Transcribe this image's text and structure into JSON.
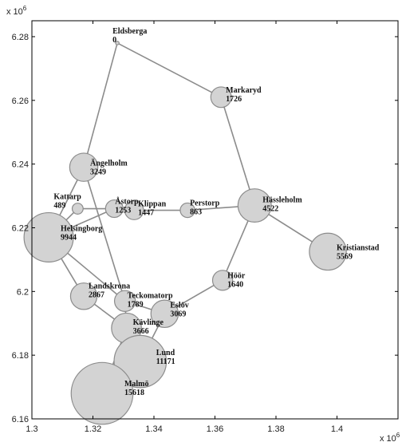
{
  "chart_data": {
    "type": "network",
    "x_exponent_label": "x 10",
    "x_exponent_power": "6",
    "y_exponent_label": "x 10",
    "y_exponent_power": "6",
    "xlim": [
      1.3,
      1.42
    ],
    "ylim": [
      6.16,
      6.285
    ],
    "xticks": [
      1.3,
      1.32,
      1.34,
      1.36,
      1.38,
      1.4
    ],
    "xtick_labels": [
      "1.3",
      "1.32",
      "1.34",
      "1.36",
      "1.38",
      "1.4"
    ],
    "yticks": [
      6.16,
      6.18,
      6.2,
      6.22,
      6.24,
      6.26,
      6.28
    ],
    "ytick_labels": [
      "6.16",
      "6.18",
      "6.2",
      "6.22",
      "6.24",
      "6.26",
      "6.28"
    ],
    "grid": false,
    "colors": {
      "node_fill": "#d3d3d3",
      "node_stroke": "#8c8c8c",
      "edge": "#8c8c8c"
    },
    "nodes": [
      {
        "id": "eldsberga",
        "name": "Eldsberga",
        "value": "0",
        "x": 1.328,
        "y": 6.278
      },
      {
        "id": "markaryd",
        "name": "Markaryd",
        "value": "1726",
        "x": 1.362,
        "y": 6.261
      },
      {
        "id": "angelholm",
        "name": "Ängelholm",
        "value": "3249",
        "x": 1.317,
        "y": 6.239
      },
      {
        "id": "hassleholm",
        "name": "Hässleholm",
        "value": "4522",
        "x": 1.373,
        "y": 6.227
      },
      {
        "id": "kattarp",
        "name": "Kattarp",
        "value": "489",
        "x": 1.315,
        "y": 6.226
      },
      {
        "id": "astorp",
        "name": "Åstorp",
        "value": "1253",
        "x": 1.327,
        "y": 6.226
      },
      {
        "id": "klippan",
        "name": "Klippan",
        "value": "1447",
        "x": 1.3335,
        "y": 6.2255
      },
      {
        "id": "perstorp",
        "name": "Perstorp",
        "value": "863",
        "x": 1.351,
        "y": 6.2255
      },
      {
        "id": "helsingborg",
        "name": "Helsingborg",
        "value": "9944",
        "x": 1.3055,
        "y": 6.217
      },
      {
        "id": "kristianstad",
        "name": "Kristianstad",
        "value": "5569",
        "x": 1.397,
        "y": 6.2125
      },
      {
        "id": "hoor",
        "name": "Höör",
        "value": "1640",
        "x": 1.3625,
        "y": 6.2035
      },
      {
        "id": "landskrona",
        "name": "Landskrona",
        "value": "2867",
        "x": 1.317,
        "y": 6.1985
      },
      {
        "id": "teckomatorp",
        "name": "Teckomatorp",
        "value": "1789",
        "x": 1.3305,
        "y": 6.197
      },
      {
        "id": "eslov",
        "name": "Eslöv",
        "value": "3069",
        "x": 1.3435,
        "y": 6.193
      },
      {
        "id": "kavlinge",
        "name": "Kävlinge",
        "value": "3666",
        "x": 1.331,
        "y": 6.1885
      },
      {
        "id": "lund",
        "name": "Lund",
        "value": "11171",
        "x": 1.3355,
        "y": 6.178
      },
      {
        "id": "malmo",
        "name": "Malmö",
        "value": "15618",
        "x": 1.323,
        "y": 6.168
      }
    ],
    "edges": [
      [
        "eldsberga",
        "markaryd"
      ],
      [
        "eldsberga",
        "angelholm"
      ],
      [
        "markaryd",
        "hassleholm"
      ],
      [
        "angelholm",
        "helsingborg"
      ],
      [
        "angelholm",
        "teckomatorp"
      ],
      [
        "helsingborg",
        "kattarp"
      ],
      [
        "kattarp",
        "astorp"
      ],
      [
        "helsingborg",
        "astorp"
      ],
      [
        "astorp",
        "klippan"
      ],
      [
        "klippan",
        "perstorp"
      ],
      [
        "perstorp",
        "hassleholm"
      ],
      [
        "hassleholm",
        "kristianstad"
      ],
      [
        "hassleholm",
        "hoor"
      ],
      [
        "hoor",
        "eslov"
      ],
      [
        "helsingborg",
        "landskrona"
      ],
      [
        "helsingborg",
        "teckomatorp"
      ],
      [
        "landskrona",
        "kavlinge"
      ],
      [
        "teckomatorp",
        "eslov"
      ],
      [
        "teckomatorp",
        "kavlinge"
      ],
      [
        "eslov",
        "lund"
      ],
      [
        "kavlinge",
        "lund"
      ],
      [
        "kavlinge",
        "malmo"
      ]
    ]
  }
}
